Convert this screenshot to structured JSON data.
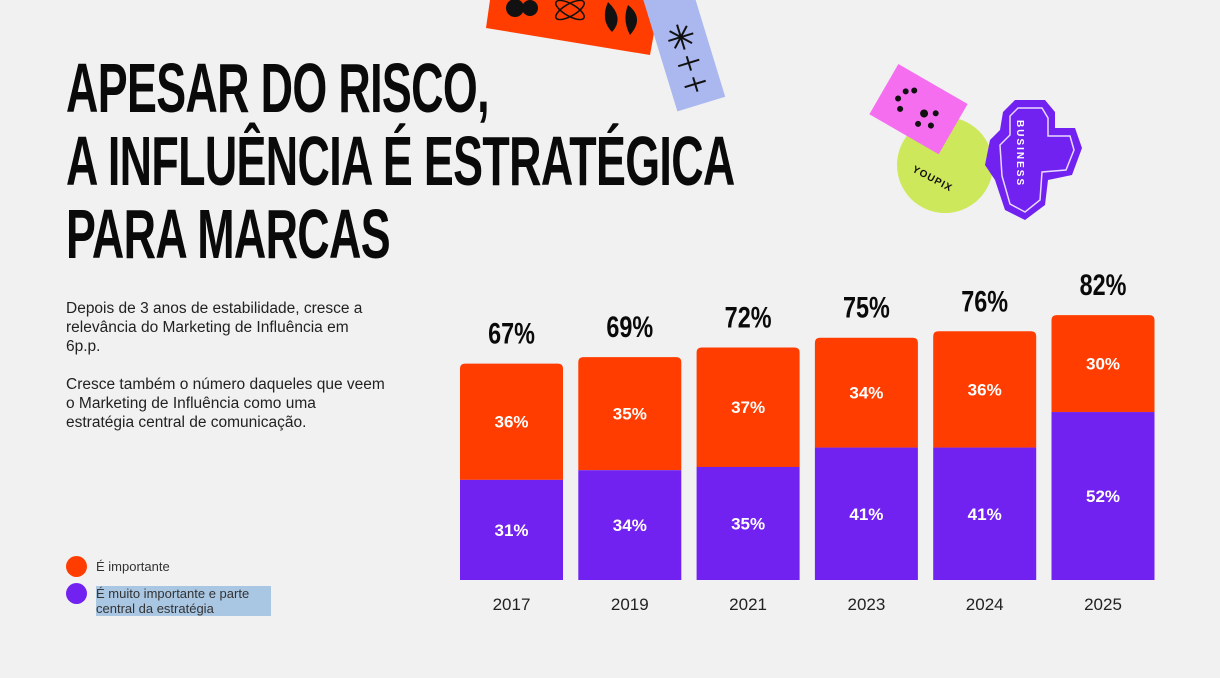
{
  "title": [
    "APESAR DO RISCO,",
    "A INFLUÊNCIA É ESTRATÉGICA",
    "PARA MARCAS"
  ],
  "body": [
    "Depois de 3 anos de estabilidade, cresce a relevância do Marketing de Influência em 6p.p.",
    "Cresce também o número daqueles que veem o Marketing de Influência como uma estratégia central de comunicação."
  ],
  "stickers": {
    "youpix": "YOUPIX",
    "business": "BUSINESS"
  },
  "colors": {
    "important": "#ff3d00",
    "very_important": "#7122f0",
    "background": "#f1f1f1",
    "pink": "#f56ef0",
    "lime": "#cde85a",
    "lavender": "#aab8ef"
  },
  "chart_data": {
    "type": "bar",
    "stacked": true,
    "categories": [
      "2017",
      "2019",
      "2021",
      "2023",
      "2024",
      "2025"
    ],
    "series": [
      {
        "name": "É muito importante e parte central da estratégia",
        "values": [
          31,
          34,
          35,
          41,
          41,
          52
        ],
        "color": "#7122f0"
      },
      {
        "name": "É importante",
        "values": [
          36,
          35,
          37,
          34,
          36,
          30
        ],
        "color": "#ff3d00"
      }
    ],
    "totals": [
      "67%",
      "69%",
      "72%",
      "75%",
      "76%",
      "82%"
    ],
    "ylim": [
      0,
      100
    ],
    "grid": false,
    "legend": "bottom-left"
  }
}
